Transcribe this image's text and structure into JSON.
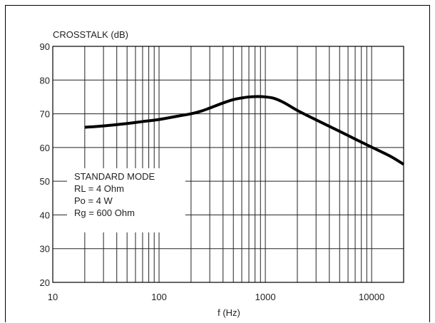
{
  "chart_data": {
    "type": "line",
    "title": "",
    "ylabel": "CROSSTALK (dB)",
    "xlabel": "f (Hz)",
    "x_scale": "log",
    "xlim": [
      10,
      20000
    ],
    "ylim": [
      20,
      90
    ],
    "x_ticks": [
      10,
      100,
      1000,
      10000
    ],
    "x_tick_labels": [
      "10",
      "100",
      "1000",
      "10000"
    ],
    "y_ticks": [
      20,
      30,
      40,
      50,
      60,
      70,
      80,
      90
    ],
    "y_tick_labels": [
      "20",
      "30",
      "40",
      "50",
      "60",
      "70",
      "80",
      "90"
    ],
    "grid": true,
    "series": [
      {
        "x": [
          20,
          30,
          50,
          70,
          100,
          150,
          200,
          250,
          300,
          400,
          500,
          600,
          700,
          800,
          900,
          1000,
          1200,
          1500,
          2000,
          3000,
          5000,
          7000,
          10000,
          15000,
          20000
        ],
        "y": [
          66,
          66.4,
          67.1,
          67.7,
          68.3,
          69.3,
          70.0,
          70.8,
          71.7,
          73.2,
          74.2,
          74.7,
          75.0,
          75.1,
          75.1,
          75.0,
          74.6,
          73.3,
          71.0,
          68.2,
          64.8,
          62.5,
          60.1,
          57.4,
          55.0
        ]
      }
    ],
    "annotation": {
      "lines": [
        "STANDARD MODE",
        "RL = 4 Ohm",
        "Po = 4 W",
        "Rg = 600 Ohm"
      ]
    }
  }
}
